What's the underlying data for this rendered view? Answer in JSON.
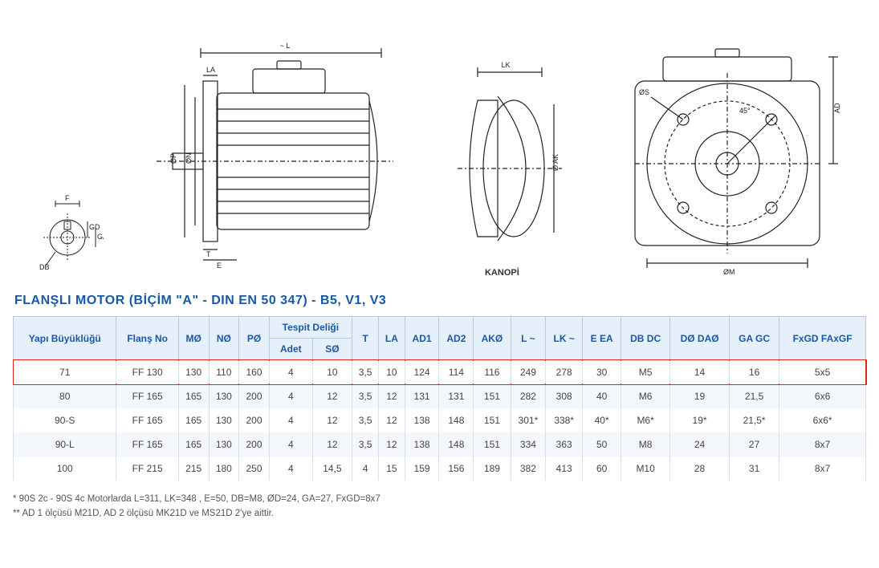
{
  "title_text": "FLANŞLI MOTOR (BİÇİM \"A\" - DIN EN 50 347) - B5, V1, V3",
  "title_color": "#1858a6",
  "kanopi_label": "KANOPİ",
  "diagram_labels": {
    "shaft_end": {
      "F": "F",
      "GD": "GD",
      "GA": "GA",
      "DB": "DB"
    },
    "side": {
      "L": "~ L",
      "LA": "LA",
      "OP": "ØP",
      "ON": "ØN",
      "T": "T",
      "E": "E"
    },
    "canopy": {
      "LK": "LK",
      "OAK": "Ø AK"
    },
    "front": {
      "OS": "ØS",
      "ang": "45°",
      "AD": "AD",
      "OM": "ØM"
    }
  },
  "table": {
    "header_bg": "#e6f0fa",
    "header_color": "#1858a6",
    "highlight_color": "#e2231a",
    "columns_top": [
      "Yapı Büyüklüğü",
      "Flanş No",
      "MØ",
      "NØ",
      "PØ",
      "Tespit Deliği",
      "T",
      "LA",
      "AD1",
      "AD2",
      "AKØ",
      "L ~",
      "LK ~",
      "E EA",
      "DB DC",
      "DØ DAØ",
      "GA GC",
      "FxGD FAxGF"
    ],
    "tespit_sub": [
      "Adet",
      "SØ"
    ],
    "rows": [
      {
        "highlight": true,
        "cells": [
          "71",
          "FF 130",
          "130",
          "110",
          "160",
          "4",
          "10",
          "3,5",
          "10",
          "124",
          "114",
          "116",
          "249",
          "278",
          "30",
          "M5",
          "14",
          "16",
          "5x5"
        ]
      },
      {
        "highlight": false,
        "cells": [
          "80",
          "FF 165",
          "165",
          "130",
          "200",
          "4",
          "12",
          "3,5",
          "12",
          "131",
          "131",
          "151",
          "282",
          "308",
          "40",
          "M6",
          "19",
          "21,5",
          "6x6"
        ]
      },
      {
        "highlight": false,
        "cells": [
          "90-S",
          "FF 165",
          "165",
          "130",
          "200",
          "4",
          "12",
          "3,5",
          "12",
          "138",
          "148",
          "151",
          "301*",
          "338*",
          "40*",
          "M6*",
          "19*",
          "21,5*",
          "6x6*"
        ]
      },
      {
        "highlight": false,
        "cells": [
          "90-L",
          "FF 165",
          "165",
          "130",
          "200",
          "4",
          "12",
          "3,5",
          "12",
          "138",
          "148",
          "151",
          "334",
          "363",
          "50",
          "M8",
          "24",
          "27",
          "8x7"
        ]
      },
      {
        "highlight": false,
        "cells": [
          "100",
          "FF 215",
          "215",
          "180",
          "250",
          "4",
          "14,5",
          "4",
          "15",
          "159",
          "156",
          "189",
          "382",
          "413",
          "60",
          "M10",
          "28",
          "31",
          "8x7"
        ]
      }
    ]
  },
  "footnotes": [
    "*   90S 2c - 90S 4c Motorlarda L=311, LK=348 , E=50, DB=M8, ØD=24, GA=27, FxGD=8x7",
    "** AD 1 ölçüsü M21D, AD 2 ölçüsü MK21D ve MS21D 2'ye aittir."
  ]
}
